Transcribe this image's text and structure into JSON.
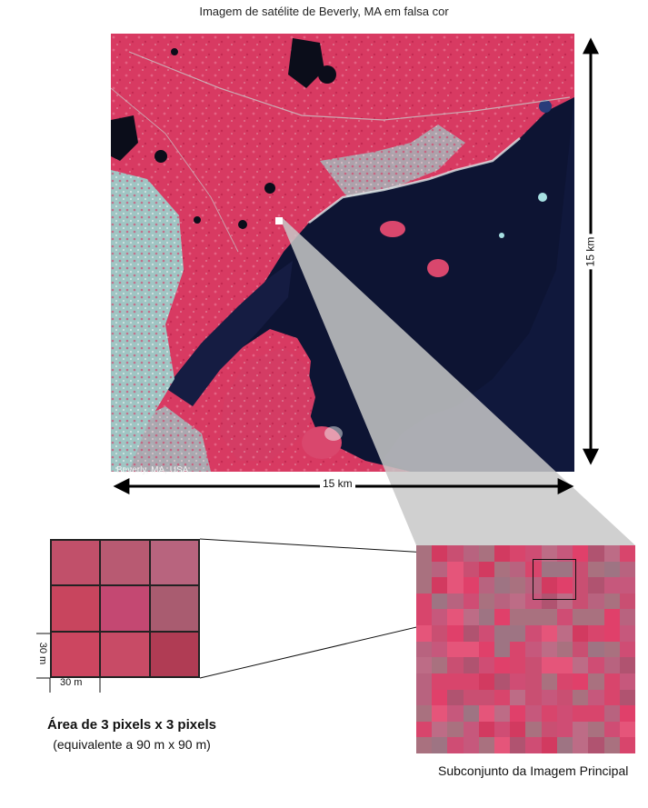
{
  "title": "Imagem de satélite de Beverly, MA em falsa cor",
  "satellite": {
    "caption": "Beverly, MA, USA",
    "width_label": "15 km",
    "height_label": "15 km"
  },
  "pixel_grid": {
    "colors": [
      "#c1506a",
      "#b85a72",
      "#b8647e",
      "#c8455e",
      "#c44872",
      "#a95c70",
      "#cc4660",
      "#c84b66",
      "#b03c54"
    ],
    "unit_h": "30 m",
    "unit_v": "30 m"
  },
  "area": {
    "title": "Área de 3 pixels x 3 pixels",
    "subtitle": "(equivalente a 90 m x 90 m)"
  },
  "subset_caption": "Subconjunto da Imagem Principal"
}
